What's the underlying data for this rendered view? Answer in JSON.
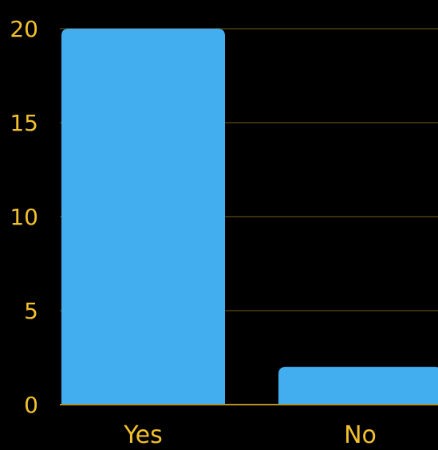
{
  "chart_data": {
    "type": "bar",
    "categories": [
      "Yes",
      "No"
    ],
    "values": [
      20,
      2
    ],
    "yticks": [
      "0",
      "5",
      "10",
      "15",
      "20"
    ],
    "ylim": [
      0,
      20
    ],
    "grid": "horizontal",
    "title": "",
    "xlabel": "",
    "ylabel": ""
  },
  "colors": {
    "background": "#000000",
    "bar": "#42aeef",
    "text": "#f2c12e",
    "grid": "#4d3d10",
    "axis": "#b8922a"
  }
}
